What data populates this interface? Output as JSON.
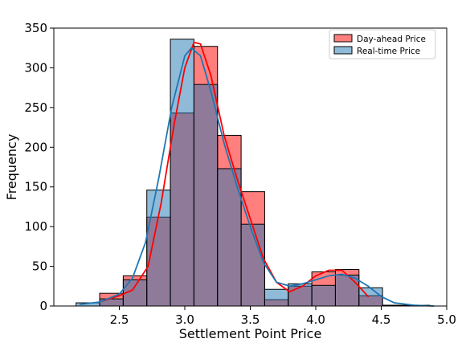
{
  "chart_data": {
    "type": "histogram",
    "xlabel": "Settlement Point Price",
    "ylabel": "Frequency",
    "xlim": [
      2.0,
      5.0
    ],
    "ylim": [
      0,
      350
    ],
    "xticks": [
      2.5,
      3.0,
      3.5,
      4.0,
      4.5,
      5.0
    ],
    "xtick_labels": [
      "2.5",
      "3.0",
      "3.5",
      "4.0",
      "4.5",
      "5.0"
    ],
    "yticks": [
      0,
      50,
      100,
      150,
      200,
      250,
      300,
      350
    ],
    "ytick_labels": [
      "0",
      "50",
      "100",
      "150",
      "200",
      "250",
      "300",
      "350"
    ],
    "legend_position": "top-right",
    "bins": [
      2.17,
      2.35,
      2.53,
      2.71,
      2.89,
      3.07,
      3.25,
      3.43,
      3.61,
      3.79,
      3.97,
      4.15,
      4.33,
      4.51,
      4.69,
      4.87
    ],
    "series": [
      {
        "name": "Day-ahead Price",
        "color": "#ff0000",
        "counts": [
          null,
          16,
          38,
          112,
          243,
          327,
          215,
          144,
          8,
          25,
          43,
          46,
          13,
          null,
          null
        ],
        "kde": [
          [
            2.35,
            5
          ],
          [
            2.5,
            13
          ],
          [
            2.6,
            20
          ],
          [
            2.72,
            50
          ],
          [
            2.82,
            130
          ],
          [
            2.92,
            230
          ],
          [
            3.0,
            300
          ],
          [
            3.07,
            332
          ],
          [
            3.12,
            330
          ],
          [
            3.2,
            290
          ],
          [
            3.3,
            215
          ],
          [
            3.4,
            160
          ],
          [
            3.5,
            110
          ],
          [
            3.6,
            60
          ],
          [
            3.7,
            30
          ],
          [
            3.8,
            18
          ],
          [
            3.9,
            25
          ],
          [
            4.0,
            38
          ],
          [
            4.1,
            45
          ],
          [
            4.2,
            45
          ],
          [
            4.3,
            30
          ],
          [
            4.4,
            12
          ]
        ]
      },
      {
        "name": "Real-time Price",
        "color": "#1f77b4",
        "counts": [
          4,
          9,
          33,
          146,
          336,
          279,
          173,
          103,
          21,
          28,
          26,
          39,
          23,
          1,
          1
        ],
        "kde": [
          [
            2.2,
            2
          ],
          [
            2.35,
            5
          ],
          [
            2.5,
            15
          ],
          [
            2.6,
            35
          ],
          [
            2.7,
            80
          ],
          [
            2.8,
            160
          ],
          [
            2.9,
            250
          ],
          [
            3.0,
            315
          ],
          [
            3.05,
            325
          ],
          [
            3.12,
            315
          ],
          [
            3.2,
            270
          ],
          [
            3.3,
            205
          ],
          [
            3.4,
            150
          ],
          [
            3.5,
            100
          ],
          [
            3.6,
            55
          ],
          [
            3.7,
            30
          ],
          [
            3.8,
            25
          ],
          [
            3.9,
            28
          ],
          [
            4.0,
            33
          ],
          [
            4.1,
            38
          ],
          [
            4.2,
            40
          ],
          [
            4.3,
            35
          ],
          [
            4.4,
            25
          ],
          [
            4.5,
            12
          ],
          [
            4.6,
            4
          ],
          [
            4.75,
            1
          ],
          [
            4.9,
            0
          ]
        ]
      }
    ]
  }
}
